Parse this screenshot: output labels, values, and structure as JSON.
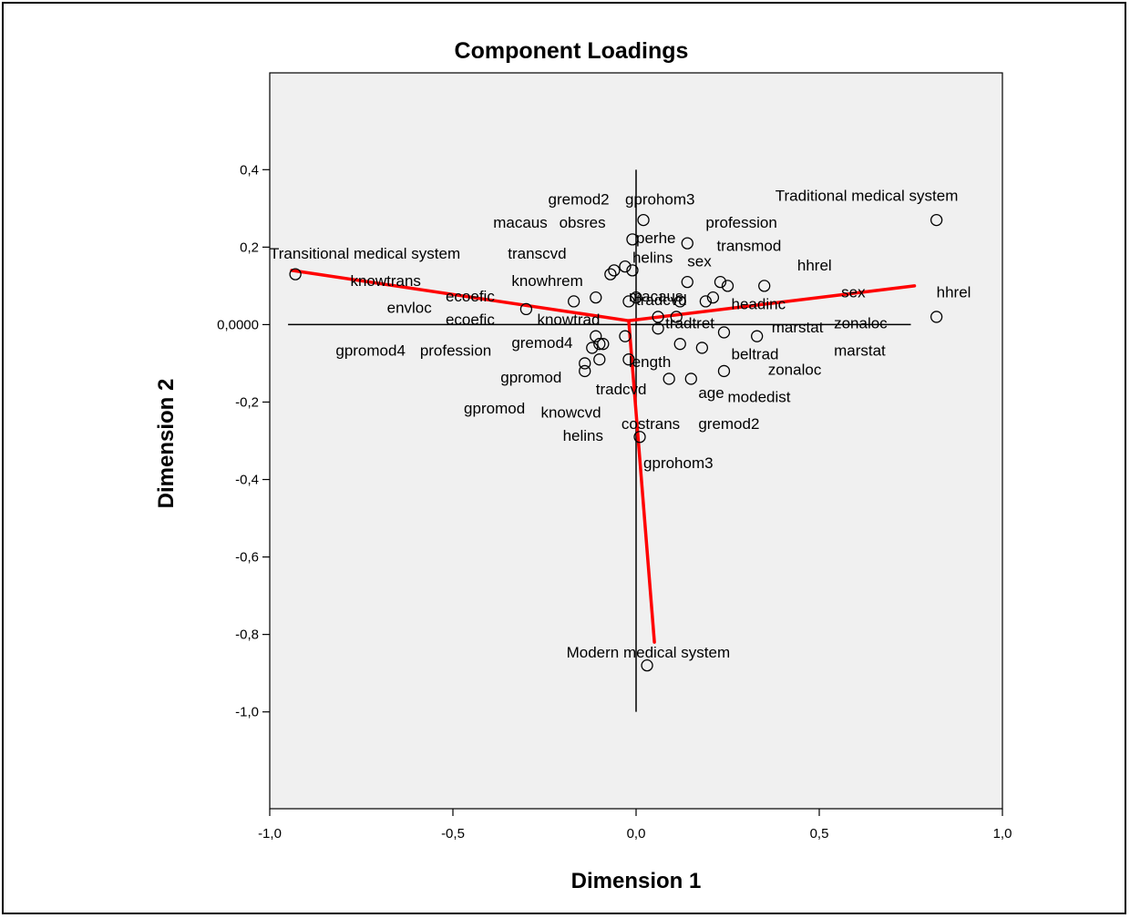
{
  "chart_data": {
    "type": "scatter",
    "title": "Component Loadings",
    "xlabel": "Dimension 1",
    "ylabel": "Dimension 2",
    "xlim": [
      -1.0,
      1.0
    ],
    "ylim": [
      -1.25,
      0.65
    ],
    "x_ticks": [
      -1.0,
      -0.5,
      0.0,
      0.5,
      1.0
    ],
    "x_tick_labels": [
      "-1,0",
      "-0,5",
      "0,0",
      "0,5",
      "1,0"
    ],
    "y_ticks": [
      0.4,
      0.2,
      0.0,
      -0.2,
      -0.4,
      -0.6,
      -0.8,
      -1.0
    ],
    "y_tick_labels": [
      "0,4",
      "0,2",
      "0,0000",
      "-0,2",
      "-0,4",
      "-0,6",
      "-0,8",
      "-1,0"
    ],
    "grid": false,
    "reference_lines": [
      {
        "axis": "x",
        "value": 0,
        "from": -0.95,
        "to": 0.75
      },
      {
        "axis": "y",
        "value": 0,
        "from": -1.0,
        "to": 0.4
      }
    ],
    "vectors": [
      {
        "color": "#ff0000",
        "origin": [
          -0.02,
          0.01
        ],
        "end": [
          -0.94,
          0.14
        ]
      },
      {
        "color": "#ff0000",
        "origin": [
          -0.02,
          0.01
        ],
        "end": [
          0.76,
          0.1
        ]
      },
      {
        "color": "#ff0000",
        "origin": [
          -0.02,
          0.01
        ],
        "end": [
          0.05,
          -0.82
        ]
      }
    ],
    "points": [
      {
        "x": -0.93,
        "y": 0.13
      },
      {
        "x": 0.82,
        "y": 0.27
      },
      {
        "x": 0.82,
        "y": 0.02
      },
      {
        "x": 0.03,
        "y": -0.88
      },
      {
        "x": 0.02,
        "y": 0.27
      },
      {
        "x": -0.01,
        "y": 0.22
      },
      {
        "x": 0.14,
        "y": 0.21
      },
      {
        "x": -0.3,
        "y": 0.04
      },
      {
        "x": -0.17,
        "y": 0.06
      },
      {
        "x": -0.11,
        "y": 0.07
      },
      {
        "x": -0.07,
        "y": 0.13
      },
      {
        "x": -0.06,
        "y": 0.14
      },
      {
        "x": -0.03,
        "y": 0.15
      },
      {
        "x": -0.01,
        "y": 0.14
      },
      {
        "x": -0.02,
        "y": 0.06
      },
      {
        "x": 0.0,
        "y": 0.07
      },
      {
        "x": 0.14,
        "y": 0.11
      },
      {
        "x": 0.12,
        "y": 0.06
      },
      {
        "x": 0.19,
        "y": 0.06
      },
      {
        "x": 0.21,
        "y": 0.07
      },
      {
        "x": 0.23,
        "y": 0.11
      },
      {
        "x": 0.25,
        "y": 0.1
      },
      {
        "x": 0.35,
        "y": 0.1
      },
      {
        "x": 0.06,
        "y": 0.02
      },
      {
        "x": 0.06,
        "y": -0.01
      },
      {
        "x": 0.11,
        "y": 0.02
      },
      {
        "x": 0.24,
        "y": -0.02
      },
      {
        "x": 0.33,
        "y": -0.03
      },
      {
        "x": -0.11,
        "y": -0.03
      },
      {
        "x": -0.12,
        "y": -0.06
      },
      {
        "x": -0.1,
        "y": -0.05
      },
      {
        "x": -0.09,
        "y": -0.05
      },
      {
        "x": -0.1,
        "y": -0.09
      },
      {
        "x": -0.14,
        "y": -0.1
      },
      {
        "x": -0.14,
        "y": -0.12
      },
      {
        "x": -0.03,
        "y": -0.03
      },
      {
        "x": -0.02,
        "y": -0.09
      },
      {
        "x": 0.12,
        "y": -0.05
      },
      {
        "x": 0.18,
        "y": -0.06
      },
      {
        "x": 0.24,
        "y": -0.12
      },
      {
        "x": 0.15,
        "y": -0.14
      },
      {
        "x": 0.09,
        "y": -0.14
      },
      {
        "x": 0.01,
        "y": -0.29
      }
    ],
    "point_labels": [
      {
        "text": "Traditional medical system",
        "x": 0.38,
        "y": 0.32
      },
      {
        "text": "Transitional medical system",
        "x": -1.0,
        "y": 0.17
      },
      {
        "text": "hhrel",
        "x": 0.82,
        "y": 0.07
      },
      {
        "text": "hhrel",
        "x": 0.44,
        "y": 0.14
      },
      {
        "text": "sex",
        "x": 0.56,
        "y": 0.07
      },
      {
        "text": "zonaloc",
        "x": 0.54,
        "y": -0.01
      },
      {
        "text": "marstat",
        "x": 0.54,
        "y": -0.08
      },
      {
        "text": "marstat",
        "x": 0.37,
        "y": -0.02
      },
      {
        "text": "zonaloc",
        "x": 0.36,
        "y": -0.13
      },
      {
        "text": "profession",
        "x": 0.19,
        "y": 0.25
      },
      {
        "text": "transmod",
        "x": 0.22,
        "y": 0.19
      },
      {
        "text": "headinc",
        "x": 0.26,
        "y": 0.04
      },
      {
        "text": "beltrad",
        "x": 0.26,
        "y": -0.09
      },
      {
        "text": "modedist",
        "x": 0.25,
        "y": -0.2
      },
      {
        "text": "age",
        "x": 0.17,
        "y": -0.19
      },
      {
        "text": "gremod2",
        "x": 0.17,
        "y": -0.27
      },
      {
        "text": "gremod2",
        "x": -0.24,
        "y": 0.31
      },
      {
        "text": "gprohom3",
        "x": -0.03,
        "y": 0.31
      },
      {
        "text": "macaus",
        "x": -0.39,
        "y": 0.25
      },
      {
        "text": "obsres",
        "x": -0.21,
        "y": 0.25
      },
      {
        "text": "perhe",
        "x": 0.0,
        "y": 0.21
      },
      {
        "text": "helins",
        "x": -0.01,
        "y": 0.16
      },
      {
        "text": "sex",
        "x": 0.14,
        "y": 0.15
      },
      {
        "text": "transcvd",
        "x": -0.35,
        "y": 0.17
      },
      {
        "text": "knowtrans",
        "x": -0.78,
        "y": 0.1
      },
      {
        "text": "knowhrem",
        "x": -0.34,
        "y": 0.1
      },
      {
        "text": "ecoefic",
        "x": -0.52,
        "y": 0.06
      },
      {
        "text": "envloc",
        "x": -0.68,
        "y": 0.03
      },
      {
        "text": "ecoefic",
        "x": -0.52,
        "y": 0.0
      },
      {
        "text": "knowtrad",
        "x": -0.27,
        "y": 0.0
      },
      {
        "text": "macaus",
        "x": -0.02,
        "y": 0.06
      },
      {
        "text": "tradcvd",
        "x": 0.0,
        "y": 0.05
      },
      {
        "text": "tradtret",
        "x": 0.08,
        "y": -0.01
      },
      {
        "text": "gpromod4",
        "x": -0.82,
        "y": -0.08
      },
      {
        "text": "profession",
        "x": -0.59,
        "y": -0.08
      },
      {
        "text": "gremod4",
        "x": -0.34,
        "y": -0.06
      },
      {
        "text": "gpromod",
        "x": -0.37,
        "y": -0.15
      },
      {
        "text": "gpromod",
        "x": -0.47,
        "y": -0.23
      },
      {
        "text": "knowcvd",
        "x": -0.26,
        "y": -0.24
      },
      {
        "text": "helins",
        "x": -0.2,
        "y": -0.3
      },
      {
        "text": "length",
        "x": -0.02,
        "y": -0.11
      },
      {
        "text": "tradcvd",
        "x": -0.11,
        "y": -0.18
      },
      {
        "text": "costrans",
        "x": -0.04,
        "y": -0.27
      },
      {
        "text": "gprohom3",
        "x": 0.02,
        "y": -0.37
      },
      {
        "text": "Modern medical system",
        "x": -0.19,
        "y": -0.86
      }
    ]
  }
}
